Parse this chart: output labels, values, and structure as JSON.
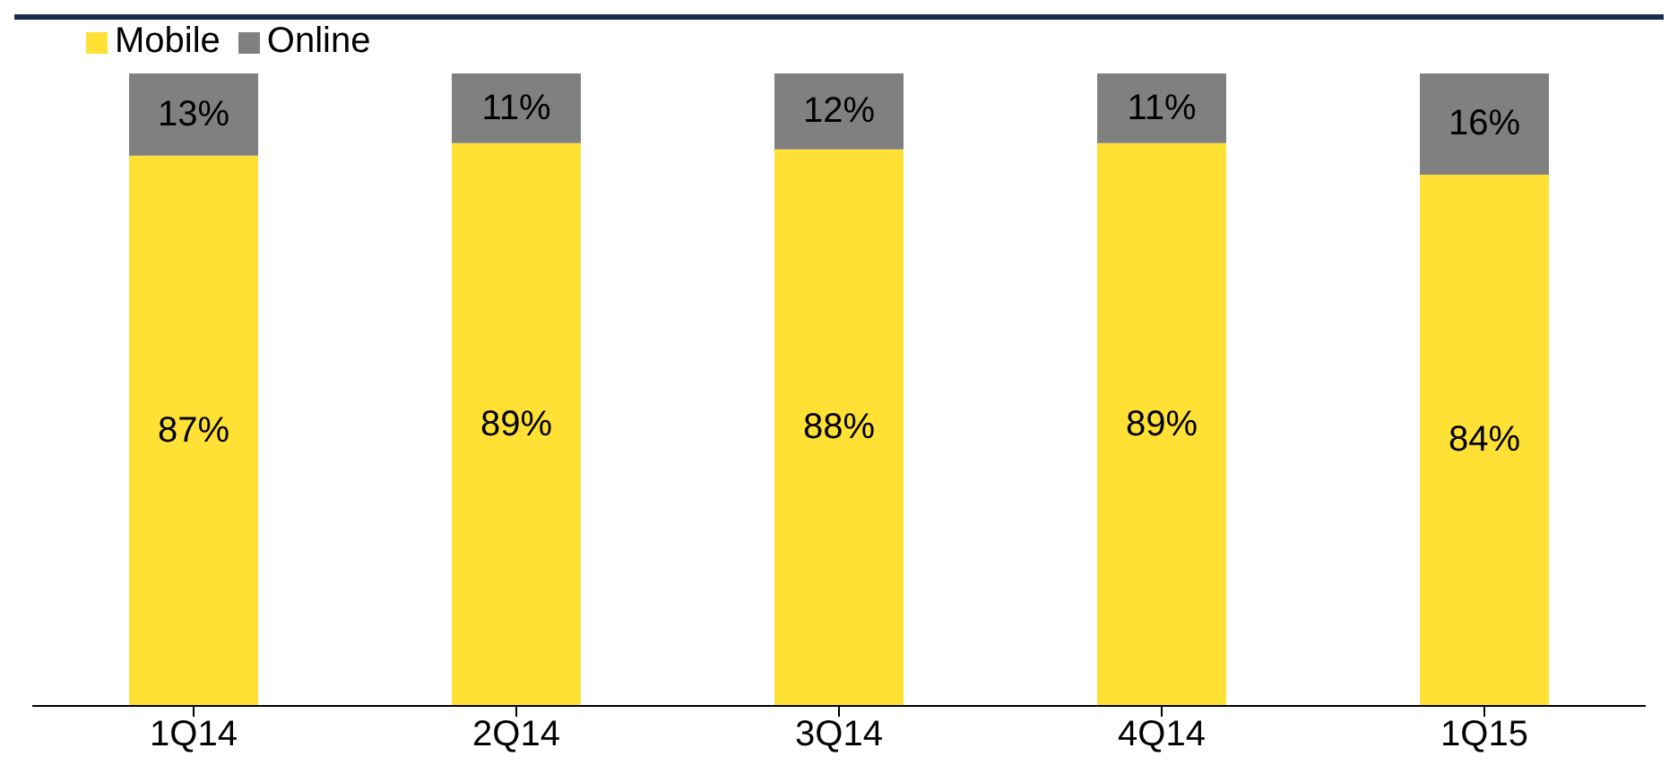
{
  "chart_data": {
    "type": "bar",
    "stacked": true,
    "categories": [
      "1Q14",
      "2Q14",
      "3Q14",
      "4Q14",
      "1Q15"
    ],
    "series": [
      {
        "name": "Mobile",
        "color": "#ffe135",
        "values": [
          87,
          89,
          88,
          89,
          84
        ],
        "value_labels": [
          "87%",
          "89%",
          "88%",
          "89%",
          "84%"
        ]
      },
      {
        "name": "Online",
        "color": "#808080",
        "values": [
          13,
          11,
          12,
          11,
          16
        ],
        "value_labels": [
          "13%",
          "11%",
          "12%",
          "11%",
          "16%"
        ]
      }
    ],
    "legend": "top left"
  }
}
